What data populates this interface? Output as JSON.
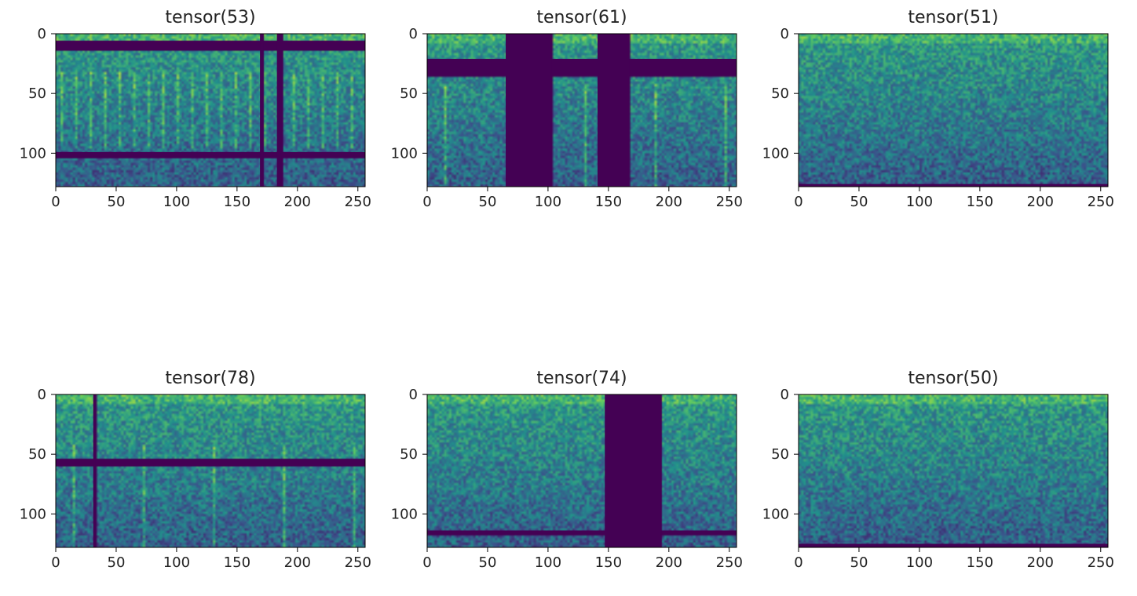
{
  "chart_data": [
    {
      "type": "heatmap",
      "title": "tensor(53)",
      "xlim": [
        0,
        256
      ],
      "ylim": [
        128,
        0
      ],
      "xticks": [
        0,
        50,
        100,
        150,
        200,
        250
      ],
      "yticks": [
        0,
        50,
        100
      ],
      "masks": {
        "freq_bands": [
          [
            6,
            14
          ],
          [
            99,
            104
          ]
        ],
        "time_bands": [
          [
            169,
            172
          ],
          [
            183,
            188
          ]
        ]
      },
      "colormap": [
        "#440154",
        "#3b528b",
        "#21918c",
        "#5ec962",
        "#fde725"
      ]
    },
    {
      "type": "heatmap",
      "title": "tensor(61)",
      "xlim": [
        0,
        256
      ],
      "ylim": [
        128,
        0
      ],
      "xticks": [
        0,
        50,
        100,
        150,
        200,
        250
      ],
      "yticks": [
        0,
        50,
        100
      ],
      "masks": {
        "freq_bands": [
          [
            21,
            35
          ]
        ],
        "time_bands": [
          [
            65,
            103
          ],
          [
            141,
            167
          ]
        ]
      },
      "colormap": [
        "#440154",
        "#3b528b",
        "#21918c",
        "#5ec962",
        "#fde725"
      ]
    },
    {
      "type": "heatmap",
      "title": "tensor(51)",
      "xlim": [
        0,
        256
      ],
      "ylim": [
        128,
        0
      ],
      "xticks": [
        0,
        50,
        100,
        150,
        200,
        250
      ],
      "yticks": [
        0,
        50,
        100
      ],
      "masks": {
        "freq_bands": [
          [
            126,
            128
          ]
        ],
        "time_bands": []
      },
      "colormap": [
        "#440154",
        "#3b528b",
        "#21918c",
        "#5ec962",
        "#fde725"
      ]
    },
    {
      "type": "heatmap",
      "title": "tensor(78)",
      "xlim": [
        0,
        256
      ],
      "ylim": [
        128,
        0
      ],
      "xticks": [
        0,
        50,
        100,
        150,
        200,
        250
      ],
      "yticks": [
        0,
        50,
        100
      ],
      "masks": {
        "freq_bands": [
          [
            54,
            60
          ]
        ],
        "time_bands": [
          [
            31,
            33
          ]
        ]
      },
      "colormap": [
        "#440154",
        "#3b528b",
        "#21918c",
        "#5ec962",
        "#fde725"
      ]
    },
    {
      "type": "heatmap",
      "title": "tensor(74)",
      "xlim": [
        0,
        256
      ],
      "ylim": [
        128,
        0
      ],
      "xticks": [
        0,
        50,
        100,
        150,
        200,
        250
      ],
      "yticks": [
        0,
        50,
        100
      ],
      "masks": {
        "freq_bands": [
          [
            114,
            117
          ]
        ],
        "time_bands": [
          [
            147,
            194
          ]
        ]
      },
      "colormap": [
        "#440154",
        "#3b528b",
        "#21918c",
        "#5ec962",
        "#fde725"
      ]
    },
    {
      "type": "heatmap",
      "title": "tensor(50)",
      "xlim": [
        0,
        256
      ],
      "ylim": [
        128,
        0
      ],
      "xticks": [
        0,
        50,
        100,
        150,
        200,
        250
      ],
      "yticks": [
        0,
        50,
        100
      ],
      "masks": {
        "freq_bands": [
          [
            125,
            128
          ]
        ],
        "time_bands": []
      },
      "colormap": [
        "#440154",
        "#3b528b",
        "#21918c",
        "#5ec962",
        "#fde725"
      ]
    }
  ]
}
